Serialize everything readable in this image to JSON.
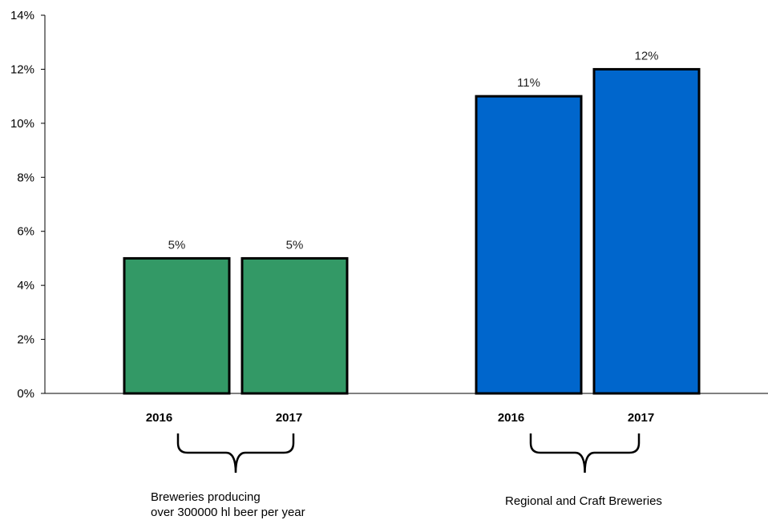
{
  "chart_data": {
    "type": "bar",
    "y_axis": {
      "ticks": [
        "0%",
        "2%",
        "4%",
        "6%",
        "8%",
        "10%",
        "12%",
        "14%"
      ],
      "ylim": [
        0,
        14
      ],
      "unit": "%"
    },
    "grid": false,
    "legend": "none",
    "groups": [
      {
        "label_lines": [
          "Breweries producing",
          "over 300000 hl beer per year"
        ],
        "color": "#339966",
        "bars": [
          {
            "category": "2016",
            "value": 5,
            "label": "5%"
          },
          {
            "category": "2017",
            "value": 5,
            "label": "5%"
          }
        ]
      },
      {
        "label_lines": [
          "Regional and Craft Breweries"
        ],
        "color": "#0066CC",
        "bars": [
          {
            "category": "2016",
            "value": 11,
            "label": "11%"
          },
          {
            "category": "2017",
            "value": 12,
            "label": "12%"
          }
        ]
      }
    ]
  }
}
